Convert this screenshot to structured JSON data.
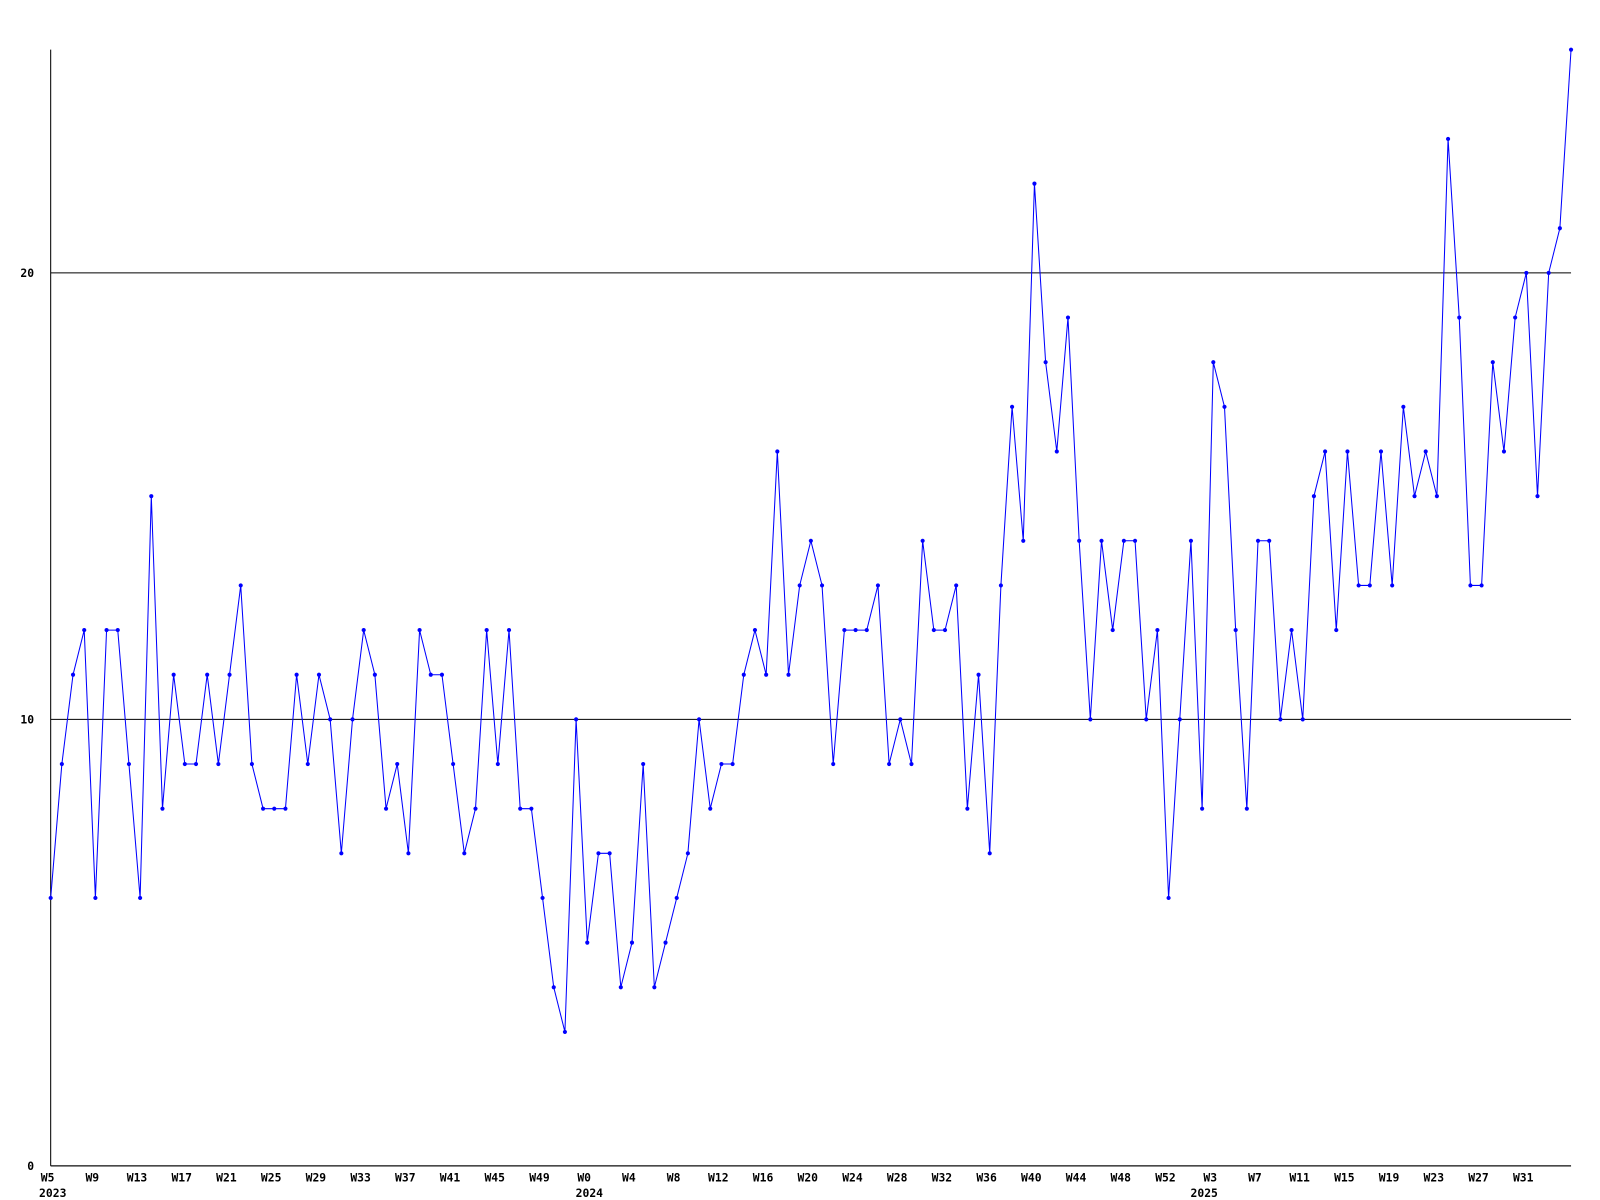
{
  "chart_data": {
    "type": "line",
    "color": "#0000ff",
    "categories": [
      "W5",
      null,
      null,
      null,
      "W9",
      null,
      null,
      null,
      "W13",
      null,
      null,
      null,
      "W17",
      null,
      null,
      null,
      "W21",
      null,
      null,
      null,
      "W25",
      null,
      null,
      null,
      "W29",
      null,
      null,
      null,
      "W33",
      null,
      null,
      null,
      "W37",
      null,
      null,
      null,
      "W41",
      null,
      null,
      null,
      "W45",
      null,
      null,
      null,
      "W49",
      null,
      null,
      null,
      "W0",
      null,
      null,
      null,
      "W4",
      null,
      null,
      null,
      "W8",
      null,
      null,
      null,
      "W12",
      null,
      null,
      null,
      "W16",
      null,
      null,
      null,
      "W20",
      null,
      null,
      null,
      "W24",
      null,
      null,
      null,
      "W28",
      null,
      null,
      null,
      "W32",
      null,
      null,
      null,
      "W36",
      null,
      null,
      null,
      "W40",
      null,
      null,
      null,
      "W44",
      null,
      null,
      null,
      "W48",
      null,
      null,
      null,
      "W52",
      null,
      null,
      null,
      "W3",
      null,
      null,
      null,
      "W7",
      null,
      null,
      null,
      "W11",
      null,
      null,
      null,
      "W15",
      null,
      null,
      null,
      "W19",
      null,
      null,
      null,
      "W23",
      null,
      null,
      null,
      "W27",
      null,
      null,
      null,
      "W31",
      null,
      null,
      null,
      null
    ],
    "years": [
      "2023",
      null,
      null,
      null,
      null,
      null,
      null,
      null,
      null,
      null,
      null,
      null,
      null,
      null,
      null,
      null,
      null,
      null,
      null,
      null,
      null,
      null,
      null,
      null,
      null,
      null,
      null,
      null,
      null,
      null,
      null,
      null,
      null,
      null,
      null,
      null,
      null,
      null,
      null,
      null,
      null,
      null,
      null,
      null,
      null,
      null,
      null,
      null,
      "2024",
      null,
      null,
      null,
      null,
      null,
      null,
      null,
      null,
      null,
      null,
      null,
      null,
      null,
      null,
      null,
      null,
      null,
      null,
      null,
      null,
      null,
      null,
      null,
      null,
      null,
      null,
      null,
      null,
      null,
      null,
      null,
      null,
      null,
      null,
      null,
      null,
      null,
      null,
      null,
      null,
      null,
      null,
      null,
      null,
      null,
      null,
      null,
      null,
      null,
      null,
      null,
      null,
      null,
      null,
      "2025",
      null,
      null,
      null,
      null,
      null,
      null,
      null,
      null,
      null,
      null,
      null,
      null,
      null,
      null,
      null,
      null,
      null,
      null,
      null,
      null,
      null,
      null,
      null,
      null,
      null,
      null,
      null,
      null,
      null,
      null,
      null,
      null,
      null,
      null,
      null
    ],
    "values": [
      6,
      9,
      11,
      12,
      6,
      12,
      12,
      9,
      6,
      15,
      8,
      11,
      9,
      9,
      11,
      9,
      11,
      13,
      9,
      8,
      8,
      8,
      11,
      9,
      11,
      10,
      7,
      10,
      12,
      11,
      8,
      9,
      7,
      12,
      11,
      11,
      9,
      7,
      8,
      12,
      9,
      12,
      8,
      8,
      6,
      4,
      3,
      10,
      5,
      7,
      7,
      4,
      5,
      9,
      4,
      5,
      6,
      7,
      10,
      8,
      9,
      9,
      11,
      12,
      11,
      16,
      11,
      13,
      14,
      13,
      9,
      12,
      12,
      12,
      13,
      9,
      10,
      9,
      14,
      12,
      12,
      13,
      8,
      11,
      7,
      13,
      17,
      14,
      22,
      18,
      16,
      19,
      14,
      10,
      14,
      12,
      14,
      14,
      10,
      12,
      6,
      10,
      14,
      8,
      18,
      17,
      12,
      8,
      14,
      14,
      10,
      12,
      10,
      15,
      16,
      12,
      16,
      13,
      13,
      16,
      13,
      17,
      15,
      16,
      15,
      23,
      19,
      13,
      13,
      18,
      16,
      19,
      20,
      15,
      20,
      21,
      25
    ],
    "ylim": [
      0,
      25
    ],
    "yticks": [
      0,
      10,
      20
    ],
    "grid": true
  }
}
